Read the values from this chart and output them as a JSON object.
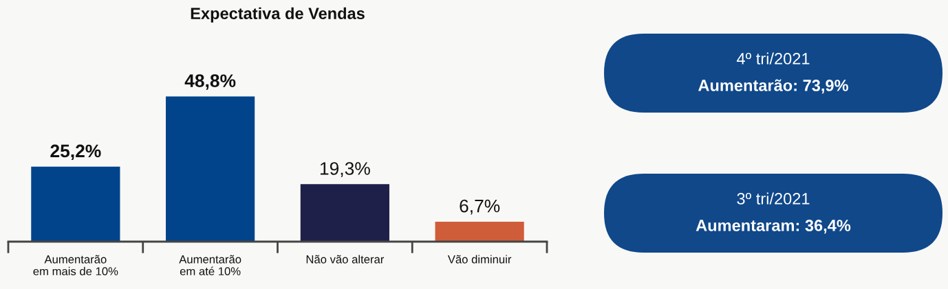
{
  "chart_data": [
    {
      "type": "bar",
      "title": "Expectativa de Vendas",
      "categories": [
        "Aumentarão\nem mais de 10%",
        "Aumentarão\nem até 10%",
        "Não vão alterar",
        "Vão diminuir"
      ],
      "values": [
        25.2,
        48.8,
        19.3,
        6.7
      ],
      "value_labels": [
        "25,2%",
        "48,8%",
        "19,3%",
        "6,7%"
      ],
      "colors": [
        "#01448c",
        "#01448c",
        "#1f2049",
        "#d05d3a"
      ],
      "tick_labels": "x",
      "grid": false
    },
    {
      "type": "other",
      "annotations": [
        "4º tri/2021",
        "Aumentarão: 73,9%",
        "3º tri/2021",
        "Aumentaram: 36,4%"
      ]
    }
  ]
}
